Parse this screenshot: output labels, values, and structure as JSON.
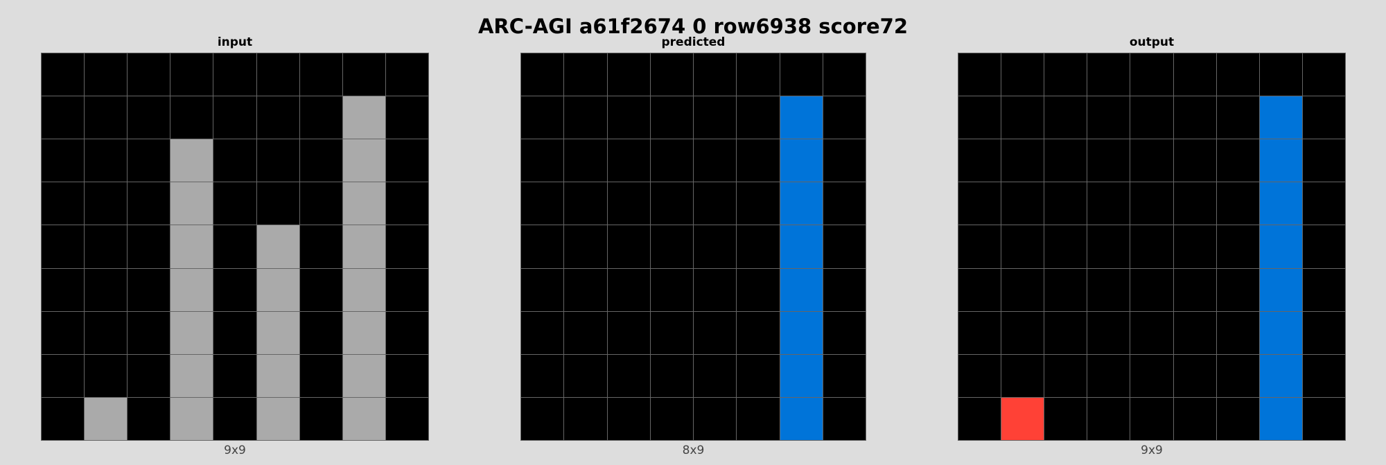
{
  "title": "ARC-AGI a61f2674 0 row6938 score72",
  "palette": {
    "0": "#000000",
    "1": "#0074d9",
    "2": "#ff4136",
    "5": "#aaaaaa"
  },
  "panels": [
    {
      "id": "input",
      "label": "input",
      "dims": "9x9",
      "grid": [
        [
          0,
          0,
          0,
          0,
          0,
          0,
          0,
          0,
          0
        ],
        [
          0,
          0,
          0,
          0,
          0,
          0,
          0,
          5,
          0
        ],
        [
          0,
          0,
          0,
          5,
          0,
          0,
          0,
          5,
          0
        ],
        [
          0,
          0,
          0,
          5,
          0,
          0,
          0,
          5,
          0
        ],
        [
          0,
          0,
          0,
          5,
          0,
          5,
          0,
          5,
          0
        ],
        [
          0,
          0,
          0,
          5,
          0,
          5,
          0,
          5,
          0
        ],
        [
          0,
          0,
          0,
          5,
          0,
          5,
          0,
          5,
          0
        ],
        [
          0,
          0,
          0,
          5,
          0,
          5,
          0,
          5,
          0
        ],
        [
          0,
          5,
          0,
          5,
          0,
          5,
          0,
          5,
          0
        ]
      ]
    },
    {
      "id": "predicted",
      "label": "predicted",
      "dims": "8x9",
      "grid": [
        [
          0,
          0,
          0,
          0,
          0,
          0,
          0,
          0
        ],
        [
          0,
          0,
          0,
          0,
          0,
          0,
          1,
          0
        ],
        [
          0,
          0,
          0,
          0,
          0,
          0,
          1,
          0
        ],
        [
          0,
          0,
          0,
          0,
          0,
          0,
          1,
          0
        ],
        [
          0,
          0,
          0,
          0,
          0,
          0,
          1,
          0
        ],
        [
          0,
          0,
          0,
          0,
          0,
          0,
          1,
          0
        ],
        [
          0,
          0,
          0,
          0,
          0,
          0,
          1,
          0
        ],
        [
          0,
          0,
          0,
          0,
          0,
          0,
          1,
          0
        ],
        [
          0,
          0,
          0,
          0,
          0,
          0,
          1,
          0
        ]
      ]
    },
    {
      "id": "output",
      "label": "output",
      "dims": "9x9",
      "grid": [
        [
          0,
          0,
          0,
          0,
          0,
          0,
          0,
          0,
          0
        ],
        [
          0,
          0,
          0,
          0,
          0,
          0,
          0,
          1,
          0
        ],
        [
          0,
          0,
          0,
          0,
          0,
          0,
          0,
          1,
          0
        ],
        [
          0,
          0,
          0,
          0,
          0,
          0,
          0,
          1,
          0
        ],
        [
          0,
          0,
          0,
          0,
          0,
          0,
          0,
          1,
          0
        ],
        [
          0,
          0,
          0,
          0,
          0,
          0,
          0,
          1,
          0
        ],
        [
          0,
          0,
          0,
          0,
          0,
          0,
          0,
          1,
          0
        ],
        [
          0,
          0,
          0,
          0,
          0,
          0,
          0,
          1,
          0
        ],
        [
          0,
          2,
          0,
          0,
          0,
          0,
          0,
          1,
          0
        ]
      ]
    }
  ]
}
